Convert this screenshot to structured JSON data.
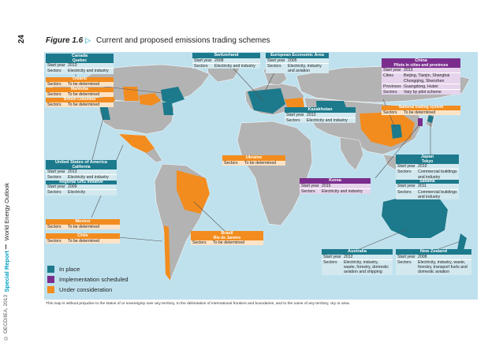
{
  "page": {
    "page_number": "24",
    "side_title": "World Energy Outlook",
    "side_subtitle": "Special Report",
    "copyright": "© OECD/IEA, 2013"
  },
  "figure": {
    "label": "Figure 1.6",
    "arrow": "▷",
    "title": "Current and proposed emissions trading schemes"
  },
  "colors": {
    "in_place": "#1c7a8c",
    "scheduled": "#7b2d8e",
    "consideration": "#f28c1e",
    "ocean": "#bfe1ee",
    "land": "#b3b3b3"
  },
  "labels": {
    "start_year": "Start year",
    "sectors": "Sectors",
    "cities": "Cities",
    "provinces": "Provinces"
  },
  "boxes": {
    "canada": {
      "header": "Canada",
      "sub": "Quebec",
      "start_year": "2013",
      "sectors": "Electricity and industry"
    },
    "ontario": {
      "header": "Ontario",
      "sectors": "To be determined"
    },
    "manitoba": {
      "header": "Manitoba",
      "sectors": "To be determined"
    },
    "bc": {
      "header": "British Columbia",
      "sectors": "To be determined"
    },
    "switzerland": {
      "header": "Switzerland",
      "start_year": "2008",
      "sectors": "Electricity and industry"
    },
    "eu": {
      "header": "European Economic Area",
      "start_year": "2005",
      "sectors": "Electricity, industry and aviation"
    },
    "china": {
      "header": "China",
      "sub": "Pilots in cities and provinces",
      "start_year": "2013",
      "cities": "Beijing, Tianjin, Shanghai Chongqing, Shenzhen",
      "provinces": "Guangdong, Hubei",
      "sectors": "Vary by pilot scheme",
      "sub2": "National trading system",
      "sectors2": "To be determined"
    },
    "kazakhstan": {
      "header": "Kazakhstan",
      "start_year": "2013",
      "sectors": "Electricity and industry"
    },
    "ukraine": {
      "header": "Ukraine",
      "sectors": "To be determined"
    },
    "usa": {
      "header": "United States of America",
      "sub": "California",
      "start_year": "2013",
      "sectors": "Electricity and industry",
      "sub2": "Regional GHG Initiative",
      "start_year2": "2009",
      "sectors2": "Electricity"
    },
    "korea": {
      "header": "Korea",
      "start_year": "2015",
      "sectors": "Electricity and industry"
    },
    "japan": {
      "header": "Japan",
      "sub": "Tokyo",
      "start_year": "2010",
      "sectors": "Commercial buildings and industry",
      "sub2": "Saitama",
      "start_year2": "2011",
      "sectors2": "Commercial buildings and industry"
    },
    "mexico": {
      "header": "Mexico",
      "sectors": "To be determined"
    },
    "chile": {
      "header": "Chile",
      "sectors": "To be determined"
    },
    "brazil": {
      "header": "Brazil",
      "sub": "Rio de Janeiro",
      "sectors": "To be determined"
    },
    "australia": {
      "header": "Australia",
      "start_year": "2012",
      "sectors": "Electricity, industry, waste, forestry, domestic aviation and shipping"
    },
    "nz": {
      "header": "New Zealand",
      "start_year": "2008",
      "sectors": "Electricity, industry, waste, forestry, transport fuels and domestic aviation"
    }
  },
  "legend": [
    {
      "label": "In place",
      "color": "#1c7a8c"
    },
    {
      "label": "Implementation scheduled",
      "color": "#7b2d8e"
    },
    {
      "label": "Under consideration",
      "color": "#f28c1e"
    }
  ],
  "footnote": "This map is without prejudice to the status of or sovereignty over any territory, to the delimitation of international frontiers and boundaries, and to the name of any territory, city or area."
}
